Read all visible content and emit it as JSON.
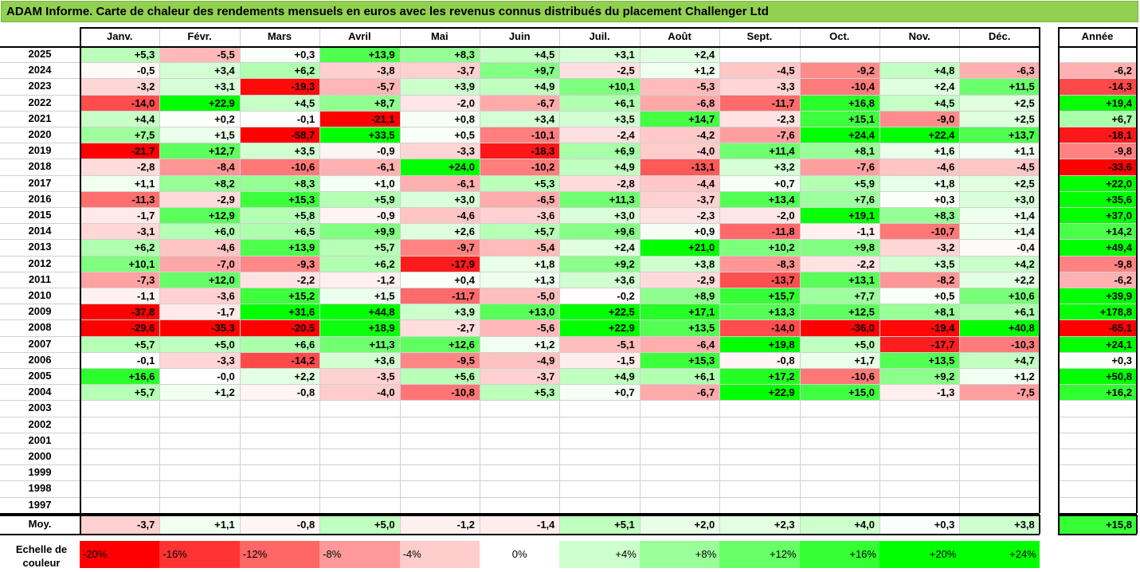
{
  "title": "ADAM Informe. Carte de chaleur des rendements mensuels en euros avec les revenus connus distribués du placement Challenger Ltd",
  "chart_data": {
    "type": "heatmap",
    "title": "ADAM Informe. Carte de chaleur des rendements mensuels en euros avec les revenus connus distribués du placement Challenger Ltd",
    "columns": [
      "Janv.",
      "Févr.",
      "Mars",
      "Avril",
      "Mai",
      "Juin",
      "Juil.",
      "Août",
      "Sept.",
      "Oct.",
      "Nov.",
      "Déc."
    ],
    "annual_label": "Année",
    "rows": [
      {
        "year": "2025",
        "values": [
          "+5,3",
          "-5,5",
          "+0,3",
          "+13,9",
          "+8,3",
          "+4,5",
          "+3,1",
          "+2,4",
          "",
          "",
          "",
          ""
        ],
        "annual": ""
      },
      {
        "year": "2024",
        "values": [
          "-0,5",
          "+3,4",
          "+6,2",
          "-3,8",
          "-3,7",
          "+9,7",
          "-2,5",
          "+1,2",
          "-4,5",
          "-9,2",
          "+4,8",
          "-6,3"
        ],
        "annual": "-6,2"
      },
      {
        "year": "2023",
        "values": [
          "-3,2",
          "+3,1",
          "-19,3",
          "-5,7",
          "+3,9",
          "+4,9",
          "+10,1",
          "-5,3",
          "-3,3",
          "-10,4",
          "+2,4",
          "+11,5"
        ],
        "annual": "-14,3"
      },
      {
        "year": "2022",
        "values": [
          "-14,0",
          "+22,9",
          "+4,5",
          "+8,7",
          "-2,0",
          "-6,7",
          "+6,1",
          "-6,8",
          "-11,7",
          "+16,8",
          "+4,5",
          "+2,5"
        ],
        "annual": "+19,4"
      },
      {
        "year": "2021",
        "values": [
          "+4,4",
          "+0,2",
          "-0,1",
          "-21,1",
          "+0,8",
          "+3,4",
          "+3,5",
          "+14,7",
          "-2,3",
          "+15,1",
          "-9,0",
          "+2,5"
        ],
        "annual": "+6,7"
      },
      {
        "year": "2020",
        "values": [
          "+7,5",
          "+1,5",
          "-58,7",
          "+33,5",
          "+0,5",
          "-10,1",
          "-2,4",
          "-4,2",
          "-7,6",
          "+24,4",
          "+22,4",
          "+13,7"
        ],
        "annual": "-18,1"
      },
      {
        "year": "2019",
        "values": [
          "-21,7",
          "+12,7",
          "+3,5",
          "-0,9",
          "-3,3",
          "-18,3",
          "+6,9",
          "-4,0",
          "+11,4",
          "+8,1",
          "+1,6",
          "+1,1"
        ],
        "annual": "-9,8"
      },
      {
        "year": "2018",
        "values": [
          "-2,8",
          "-8,4",
          "-10,6",
          "-6,1",
          "+24,0",
          "-10,2",
          "+4,9",
          "-13,1",
          "+3,2",
          "-7,6",
          "-4,6",
          "-4,5"
        ],
        "annual": "-33,6"
      },
      {
        "year": "2017",
        "values": [
          "+1,1",
          "+8,2",
          "+8,3",
          "+1,0",
          "-6,1",
          "+5,3",
          "-2,8",
          "-4,4",
          "+0,7",
          "+5,9",
          "+1,8",
          "+2,5"
        ],
        "annual": "+22,0"
      },
      {
        "year": "2016",
        "values": [
          "-11,3",
          "-2,9",
          "+15,3",
          "+5,9",
          "+3,0",
          "-6,5",
          "+11,3",
          "-3,7",
          "+13,4",
          "+7,6",
          "+0,3",
          "+3,0"
        ],
        "annual": "+35,6"
      },
      {
        "year": "2015",
        "values": [
          "-1,7",
          "+12,9",
          "+5,8",
          "-0,9",
          "-4,6",
          "-3,6",
          "+3,0",
          "-2,3",
          "-2,0",
          "+19,1",
          "+8,3",
          "+1,4"
        ],
        "annual": "+37,0"
      },
      {
        "year": "2014",
        "values": [
          "-3,1",
          "+6,0",
          "+6,5",
          "+9,9",
          "+2,6",
          "+5,7",
          "+9,6",
          "+0,9",
          "-11,8",
          "-1,1",
          "-10,7",
          "+1,4"
        ],
        "annual": "+14,2"
      },
      {
        "year": "2013",
        "values": [
          "+6,2",
          "-4,6",
          "+13,9",
          "+5,7",
          "-9,7",
          "-5,4",
          "+2,4",
          "+21,0",
          "+10,2",
          "+9,8",
          "-3,2",
          "-0,4"
        ],
        "annual": "+49,4"
      },
      {
        "year": "2012",
        "values": [
          "+10,1",
          "-7,0",
          "-9,3",
          "+6,2",
          "-17,9",
          "+1,8",
          "+9,2",
          "+3,8",
          "-8,3",
          "-2,2",
          "+3,5",
          "+4,2"
        ],
        "annual": "-9,8"
      },
      {
        "year": "2011",
        "values": [
          "-7,3",
          "+12,0",
          "-2,2",
          "-1,2",
          "+0,4",
          "+1,3",
          "+3,6",
          "-2,9",
          "-13,7",
          "+13,1",
          "-8,2",
          "+2,2"
        ],
        "annual": "-6,2"
      },
      {
        "year": "2010",
        "values": [
          "-1,1",
          "-3,6",
          "+15,2",
          "+1,5",
          "-11,7",
          "-5,0",
          "-0,2",
          "+8,9",
          "+15,7",
          "+7,7",
          "+0,5",
          "+10,6"
        ],
        "annual": "+39,9"
      },
      {
        "year": "2009",
        "values": [
          "-37,8",
          "-1,7",
          "+31,6",
          "+44,8",
          "+3,9",
          "+13,0",
          "+22,5",
          "+17,1",
          "+13,3",
          "+12,5",
          "+8,1",
          "+6,1"
        ],
        "annual": "+178,8"
      },
      {
        "year": "2008",
        "values": [
          "-29,6",
          "-35,3",
          "-20,5",
          "+18,9",
          "-2,7",
          "-5,6",
          "+22,9",
          "+13,5",
          "-14,0",
          "-36,0",
          "-19,4",
          "+40,8"
        ],
        "annual": "-65,1"
      },
      {
        "year": "2007",
        "values": [
          "+5,7",
          "+5,0",
          "+6,6",
          "+11,3",
          "+12,6",
          "+1,2",
          "-5,1",
          "-6,4",
          "+19,8",
          "+5,0",
          "-17,7",
          "-10,3"
        ],
        "annual": "+24,1"
      },
      {
        "year": "2006",
        "values": [
          "-0,1",
          "-3,3",
          "-14,2",
          "+3,6",
          "-9,5",
          "-4,9",
          "-1,5",
          "+15,3",
          "-0,8",
          "+1,7",
          "+13,5",
          "+4,7"
        ],
        "annual": "+0,3"
      },
      {
        "year": "2005",
        "values": [
          "+16,6",
          "-0,0",
          "+2,2",
          "-3,5",
          "+5,6",
          "-3,7",
          "+4,9",
          "+6,1",
          "+17,2",
          "-10,6",
          "+9,2",
          "+1,2"
        ],
        "annual": "+50,8"
      },
      {
        "year": "2004",
        "values": [
          "+5,7",
          "+1,2",
          "-0,8",
          "-4,0",
          "-10,8",
          "+5,3",
          "+0,7",
          "-6,7",
          "+22,9",
          "+15,0",
          "-1,3",
          "-7,5"
        ],
        "annual": "+16,2"
      },
      {
        "year": "2003",
        "values": [
          "",
          "",
          "",
          "",
          "",
          "",
          "",
          "",
          "",
          "",
          "",
          ""
        ],
        "annual": ""
      },
      {
        "year": "2002",
        "values": [
          "",
          "",
          "",
          "",
          "",
          "",
          "",
          "",
          "",
          "",
          "",
          ""
        ],
        "annual": ""
      },
      {
        "year": "2001",
        "values": [
          "",
          "",
          "",
          "",
          "",
          "",
          "",
          "",
          "",
          "",
          "",
          ""
        ],
        "annual": ""
      },
      {
        "year": "2000",
        "values": [
          "",
          "",
          "",
          "",
          "",
          "",
          "",
          "",
          "",
          "",
          "",
          ""
        ],
        "annual": ""
      },
      {
        "year": "1999",
        "values": [
          "",
          "",
          "",
          "",
          "",
          "",
          "",
          "",
          "",
          "",
          "",
          ""
        ],
        "annual": ""
      },
      {
        "year": "1998",
        "values": [
          "",
          "",
          "",
          "",
          "",
          "",
          "",
          "",
          "",
          "",
          "",
          ""
        ],
        "annual": ""
      },
      {
        "year": "1997",
        "values": [
          "",
          "",
          "",
          "",
          "",
          "",
          "",
          "",
          "",
          "",
          "",
          ""
        ],
        "annual": ""
      }
    ],
    "average": {
      "label": "Moy.",
      "values": [
        "-3,7",
        "+1,1",
        "-0,8",
        "+5,0",
        "-1,2",
        "-1,4",
        "+5,1",
        "+2,0",
        "+2,3",
        "+4,0",
        "+0,3",
        "+3,8"
      ],
      "annual": "+15,8"
    },
    "color_scale": {
      "label": "Echelle de couleur",
      "steps": [
        {
          "label": "-20%",
          "color": "#ff0000"
        },
        {
          "label": "-16%",
          "color": "#ff3333"
        },
        {
          "label": "-12%",
          "color": "#ff6666"
        },
        {
          "label": "-8%",
          "color": "#ff9999"
        },
        {
          "label": "-4%",
          "color": "#ffcccc"
        },
        {
          "label": "0%",
          "color": "#ffffff"
        },
        {
          "label": "+4%",
          "color": "#ccffcc"
        },
        {
          "label": "+8%",
          "color": "#99ff99"
        },
        {
          "label": "+12%",
          "color": "#66ff66"
        },
        {
          "label": "+16%",
          "color": "#33ff33"
        },
        {
          "label": "+20%",
          "color": "#00ff00"
        },
        {
          "label": "+24%",
          "color": "#00ff00"
        }
      ]
    }
  }
}
